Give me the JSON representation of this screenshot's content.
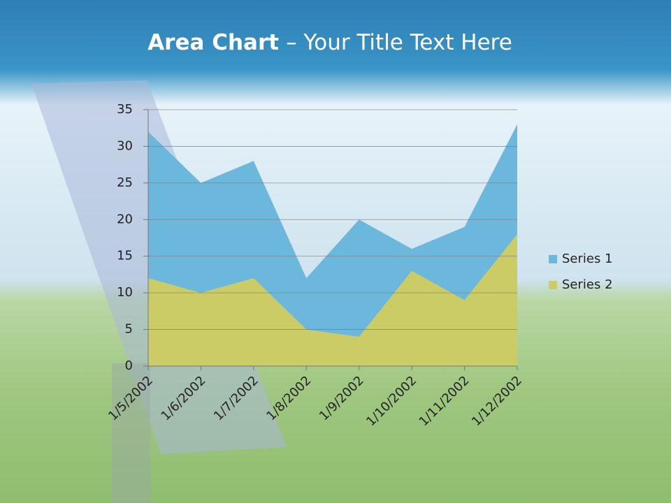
{
  "chart_data": {
    "type": "area",
    "title": [
      "Area Chart",
      "– Your Title Text Here"
    ],
    "categories": [
      "1/5/2002",
      "1/6/2002",
      "1/7/2002",
      "1/8/2002",
      "1/9/2002",
      "1/10/2002",
      "1/11/2002",
      "1/12/2002"
    ],
    "series": [
      {
        "name": "Series 1",
        "color": "#6cb8dc",
        "values": [
          32,
          25,
          28,
          12,
          20,
          16,
          19,
          33
        ]
      },
      {
        "name": "Series 2",
        "color": "#cccc66",
        "values": [
          12,
          10,
          12,
          5,
          4,
          13,
          9,
          18
        ]
      }
    ],
    "ylim": [
      0,
      35
    ],
    "yticks": [
      0,
      5,
      10,
      15,
      20,
      25,
      30,
      35
    ],
    "grid": true,
    "legend": "right"
  }
}
